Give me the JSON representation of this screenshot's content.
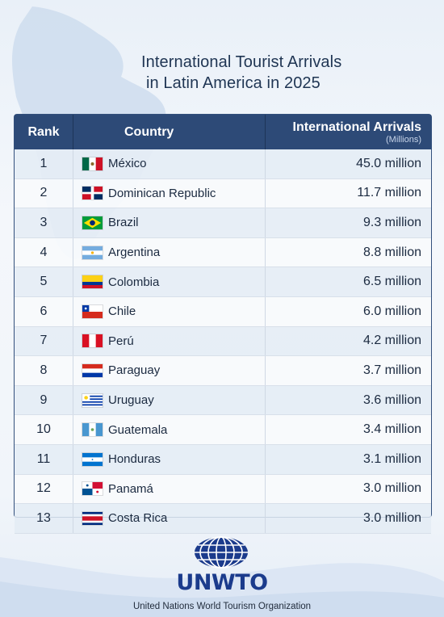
{
  "title": {
    "line1": "International Tourist Arrivals",
    "line2": "in Latin America in 2025"
  },
  "table": {
    "headers": {
      "rank": "Rank",
      "country": "Country",
      "arrivals": "International Arrivals",
      "arrivals_unit": "(Millions)"
    },
    "rows": [
      {
        "rank": "1",
        "country": "México",
        "value": "45.0 million",
        "flag": "mexico-flag-icon"
      },
      {
        "rank": "2",
        "country": "Dominican Republic",
        "value": "11.7 million",
        "flag": "dominican-republic-flag-icon"
      },
      {
        "rank": "3",
        "country": "Brazil",
        "value": "9.3 million",
        "flag": "brazil-flag-icon"
      },
      {
        "rank": "4",
        "country": "Argentina",
        "value": "8.8 million",
        "flag": "argentina-flag-icon"
      },
      {
        "rank": "5",
        "country": "Colombia",
        "value": "6.5 million",
        "flag": "colombia-flag-icon"
      },
      {
        "rank": "6",
        "country": "Chile",
        "value": "6.0 million",
        "flag": "chile-flag-icon"
      },
      {
        "rank": "7",
        "country": "Perú",
        "value": "4.2 million",
        "flag": "peru-flag-icon"
      },
      {
        "rank": "8",
        "country": "Paraguay",
        "value": "3.7 million",
        "flag": "paraguay-flag-icon"
      },
      {
        "rank": "9",
        "country": "Uruguay",
        "value": "3.6 million",
        "flag": "uruguay-flag-icon"
      },
      {
        "rank": "10",
        "country": "Guatemala",
        "value": "3.4 million",
        "flag": "guatemala-flag-icon"
      },
      {
        "rank": "11",
        "country": "Honduras",
        "value": "3.1 million",
        "flag": "honduras-flag-icon"
      },
      {
        "rank": "12",
        "country": "Panamá",
        "value": "3.0 million",
        "flag": "panama-flag-icon"
      },
      {
        "rank": "13",
        "country": "Costa Rica",
        "value": "3.0 million",
        "flag": "costa-rica-flag-icon"
      }
    ]
  },
  "logo": {
    "name": "UNWTO",
    "subtitle": "United Nations World Tourism Organization",
    "icon": "un-globe-icon"
  },
  "colors": {
    "header_bg": "#2d4a77",
    "title": "#1f3553",
    "logo": "#1b3b8c"
  }
}
